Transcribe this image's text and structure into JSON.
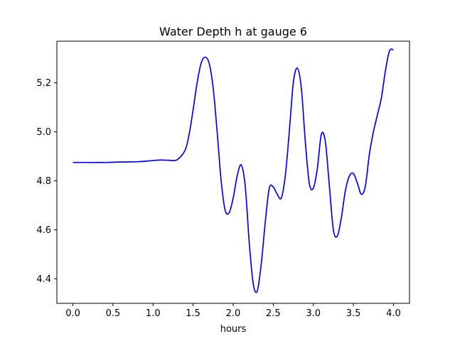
{
  "chart_data": {
    "type": "line",
    "title": "Water Depth h at gauge 6",
    "xlabel": "hours",
    "ylabel": "",
    "xlim": [
      -0.2,
      4.2
    ],
    "ylim": [
      4.3,
      5.37
    ],
    "x_ticks": [
      0.0,
      0.5,
      1.0,
      1.5,
      2.0,
      2.5,
      3.0,
      3.5,
      4.0
    ],
    "x_tick_labels": [
      "0.0",
      "0.5",
      "1.0",
      "1.5",
      "2.0",
      "2.5",
      "3.0",
      "3.5",
      "4.0"
    ],
    "y_ticks": [
      4.4,
      4.6,
      4.8,
      5.0,
      5.2
    ],
    "y_tick_labels": [
      "4.4",
      "4.6",
      "4.8",
      "5.0",
      "5.2"
    ],
    "grid": false,
    "legend": "none",
    "series": [
      {
        "color": "#0000ff",
        "x": [
          0.0,
          0.2,
          0.4,
          0.6,
          0.8,
          0.9,
          1.0,
          1.1,
          1.2,
          1.3,
          1.4,
          1.45,
          1.5,
          1.55,
          1.6,
          1.65,
          1.7,
          1.75,
          1.8,
          1.85,
          1.9,
          1.95,
          2.0,
          2.05,
          2.1,
          2.15,
          2.2,
          2.25,
          2.3,
          2.35,
          2.4,
          2.45,
          2.5,
          2.55,
          2.6,
          2.65,
          2.7,
          2.75,
          2.8,
          2.85,
          2.9,
          2.95,
          3.0,
          3.05,
          3.1,
          3.15,
          3.2,
          3.25,
          3.3,
          3.35,
          3.4,
          3.45,
          3.5,
          3.55,
          3.6,
          3.65,
          3.7,
          3.75,
          3.8,
          3.85,
          3.9,
          3.95,
          4.0
        ],
        "y": [
          4.875,
          4.875,
          4.875,
          4.877,
          4.878,
          4.88,
          4.883,
          4.885,
          4.884,
          4.886,
          4.925,
          4.99,
          5.09,
          5.2,
          5.28,
          5.305,
          5.28,
          5.18,
          5.0,
          4.8,
          4.68,
          4.67,
          4.73,
          4.82,
          4.865,
          4.78,
          4.55,
          4.38,
          4.35,
          4.46,
          4.63,
          4.77,
          4.775,
          4.745,
          4.73,
          4.82,
          5.0,
          5.2,
          5.26,
          5.18,
          4.96,
          4.79,
          4.77,
          4.85,
          4.99,
          4.96,
          4.78,
          4.6,
          4.575,
          4.65,
          4.76,
          4.82,
          4.83,
          4.79,
          4.745,
          4.78,
          4.91,
          5.0,
          5.07,
          5.14,
          5.25,
          5.33,
          5.335
        ]
      }
    ]
  }
}
